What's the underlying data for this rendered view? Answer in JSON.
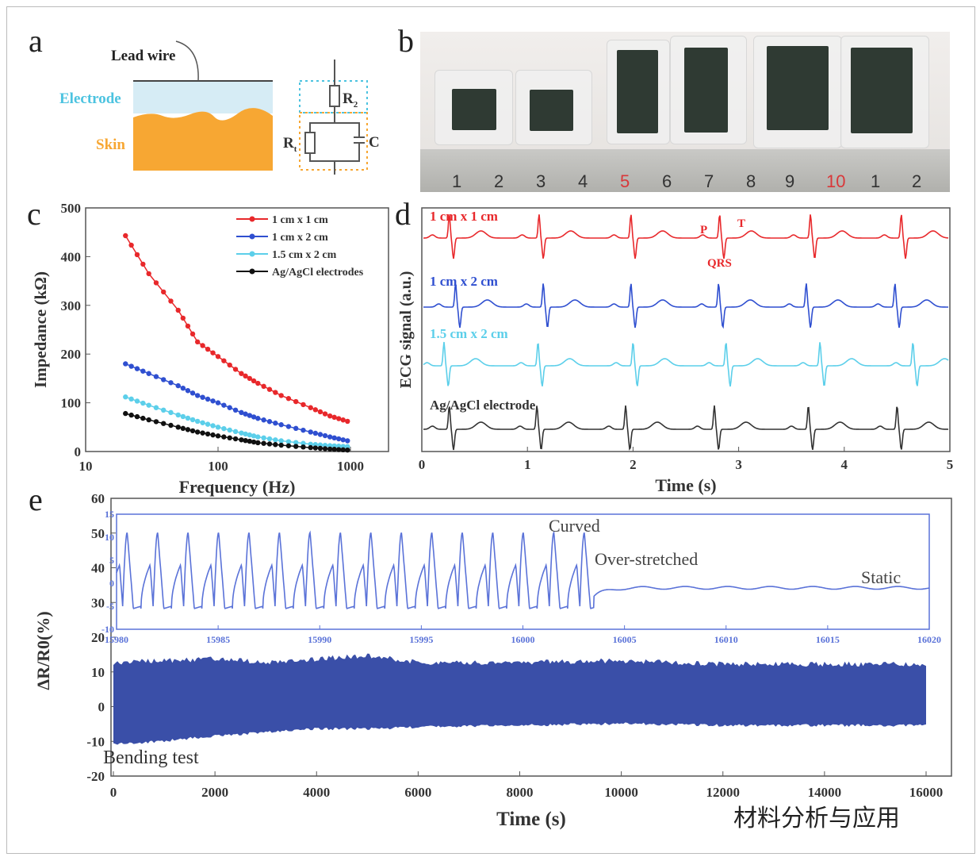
{
  "panels": {
    "a": "a",
    "b": "b",
    "c": "c",
    "d": "d",
    "e": "e"
  },
  "schematic": {
    "lead_wire": "Lead wire",
    "electrode": "Electrode",
    "skin": "Skin",
    "r2": "R",
    "r2_sub": "2",
    "r1": "R",
    "r1_sub": "t",
    "c": "C",
    "colors": {
      "electrode": "#d6ecf5",
      "skin": "#f7a733",
      "electrode_text": "#4cc3e0",
      "skin_text": "#f7a733"
    }
  },
  "photo": {
    "ruler_numbers": [
      "1",
      "2",
      "3",
      "4",
      "5",
      "6",
      "7",
      "8",
      "9",
      "10",
      "1",
      "2"
    ],
    "red_numbers": [
      "5",
      "10"
    ]
  },
  "watermark": "材料分析与应用",
  "chart_data": [
    {
      "id": "c",
      "type": "line",
      "xlabel": "Frequency (Hz)",
      "ylabel": "Impedance (kΩ)",
      "xscale": "log",
      "xlim": [
        10,
        2000
      ],
      "ylim": [
        0,
        500
      ],
      "xticks": [
        10,
        100,
        1000
      ],
      "yticks": [
        0,
        100,
        200,
        300,
        400,
        500
      ],
      "legend": "top-right",
      "x": [
        20,
        30,
        50,
        70,
        100,
        150,
        200,
        300,
        500,
        700,
        950
      ],
      "series": [
        {
          "name": "1 cm x 1 cm",
          "color": "#e8282b",
          "marker": "diamond",
          "values": [
            443,
            365,
            290,
            225,
            195,
            160,
            140,
            115,
            90,
            73,
            62
          ]
        },
        {
          "name": "1 cm x 2 cm",
          "color": "#2f4fd0",
          "marker": "circle",
          "values": [
            180,
            160,
            135,
            115,
            100,
            80,
            68,
            55,
            40,
            30,
            22
          ]
        },
        {
          "name": "1.5 cm x 2 cm",
          "color": "#5ccfea",
          "marker": "triangle-down",
          "values": [
            112,
            95,
            75,
            62,
            50,
            38,
            30,
            22,
            15,
            12,
            10
          ]
        },
        {
          "name": "Ag/AgCl electrodes",
          "color": "#111111",
          "marker": "triangle-up",
          "values": [
            78,
            65,
            50,
            40,
            32,
            24,
            18,
            13,
            8,
            5,
            3
          ]
        }
      ]
    },
    {
      "id": "d",
      "type": "line",
      "xlabel": "Time (s)",
      "ylabel": "ECG signal (a.u.)",
      "xlim": [
        0,
        5
      ],
      "xticks": [
        0,
        1,
        2,
        3,
        4,
        5
      ],
      "annotations": [
        "P",
        "T",
        "QRS"
      ],
      "series": [
        {
          "name": "1 cm x 1 cm",
          "color": "#e8282b",
          "beats_s": [
            0.26,
            1.11,
            1.98,
            2.82,
            3.68,
            4.54
          ]
        },
        {
          "name": "1 cm x 2 cm",
          "color": "#2f4fd0",
          "beats_s": [
            0.32,
            1.15,
            1.98,
            2.81,
            3.64,
            4.48
          ]
        },
        {
          "name": "1.5 cm x 2 cm",
          "color": "#5ccfea",
          "beats_s": [
            0.21,
            1.1,
            2.0,
            2.88,
            3.77,
            4.65
          ]
        },
        {
          "name": "Ag/AgCl electrode",
          "color": "#333333",
          "beats_s": [
            0.26,
            1.09,
            1.93,
            2.77,
            3.66,
            4.5
          ]
        }
      ]
    },
    {
      "id": "e",
      "type": "area",
      "xlabel": "Time (s)",
      "ylabel": "ΔR/R0(%)",
      "xlim": [
        0,
        16000
      ],
      "ylim": [
        -20,
        60
      ],
      "xticks": [
        0,
        2000,
        4000,
        6000,
        8000,
        10000,
        12000,
        14000,
        16000
      ],
      "yticks": [
        -20,
        -10,
        0,
        10,
        20,
        30,
        40,
        50,
        60
      ],
      "color": "#3a4fa8",
      "annotation": "Bending test",
      "envelope": {
        "x": [
          0,
          1000,
          2000,
          3000,
          4000,
          5000,
          6000,
          8000,
          10000,
          12000,
          14000,
          16000
        ],
        "upper": [
          12,
          12.5,
          13,
          12,
          13,
          14,
          12,
          12,
          12.5,
          11.5,
          11.5,
          11.5
        ],
        "lower": [
          -10.5,
          -9.5,
          -8,
          -7,
          -6,
          -6,
          -5.5,
          -5,
          -4.5,
          -5,
          -5,
          -5
        ]
      }
    },
    {
      "id": "e-inset",
      "type": "line",
      "xlim": [
        15980,
        16020
      ],
      "ylim": [
        -10,
        15
      ],
      "xticks": [
        15980,
        15985,
        15990,
        15995,
        16000,
        16005,
        16010,
        16015,
        16020
      ],
      "yticks": [
        -10,
        -5,
        0,
        5,
        10,
        15
      ],
      "color": "#5a72d8",
      "annotations": [
        "Curved",
        "Over-stretched",
        "Static"
      ],
      "cycle_period_s": 1.5,
      "cycles": 15,
      "peak": 11,
      "shoulder": 4,
      "trough": -5.5,
      "release_time": 16003.5,
      "static_level": -1
    }
  ]
}
